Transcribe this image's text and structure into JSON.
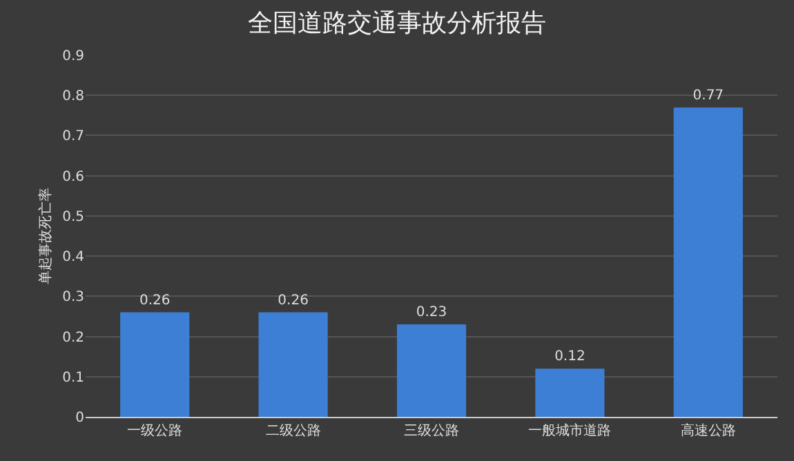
{
  "chart_data": {
    "type": "bar",
    "title": "全国道路交通事故分析报告",
    "ylabel": "单起事故死亡率",
    "categories": [
      "一级公路",
      "二级公路",
      "三级公路",
      "一般城市道路",
      "高速公路"
    ],
    "values": [
      0.26,
      0.26,
      0.23,
      0.12,
      0.77
    ],
    "color": "#3d7fd4",
    "ylim": [
      0,
      0.9
    ],
    "yticks": [
      0,
      0.1,
      0.2,
      0.3,
      0.4,
      0.5,
      0.6,
      0.7,
      0.8,
      0.9
    ],
    "grid": "y",
    "data_labels": true
  }
}
